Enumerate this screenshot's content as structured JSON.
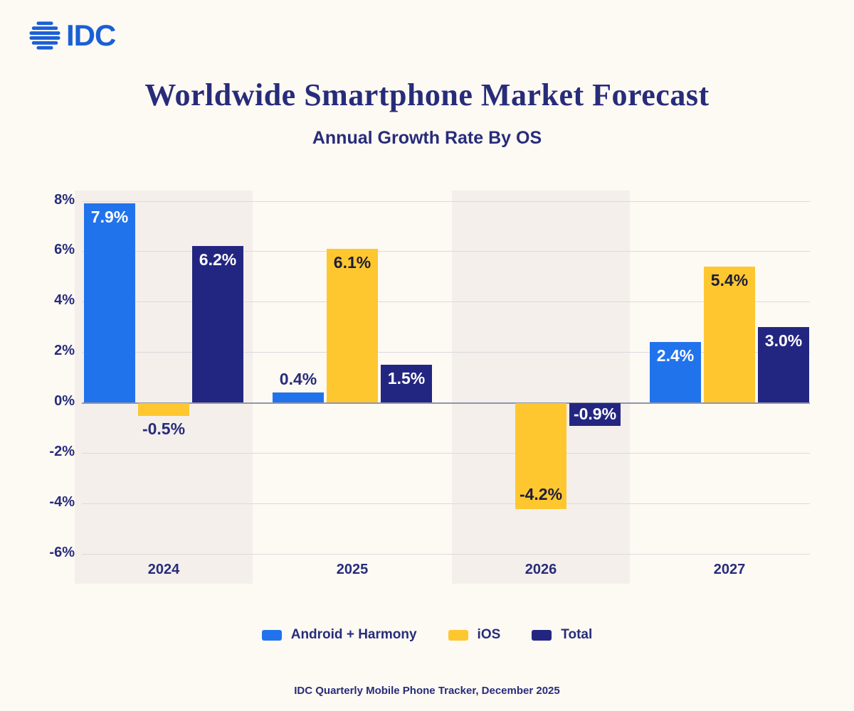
{
  "logo": {
    "text": "IDC",
    "icon": "idc-globe-icon"
  },
  "header": {
    "title": "Worldwide Smartphone Market Forecast",
    "subtitle": "Annual Growth Rate By OS"
  },
  "footer": {
    "source": "IDC Quarterly Mobile Phone Tracker, December 2025"
  },
  "colors": {
    "android": "#2173ec",
    "ios": "#fec72f",
    "total": "#232680",
    "accent_text": "#272c7a",
    "logo_blue": "#1a5fd6",
    "background": "#fdf9f3",
    "band": "#f4efeb",
    "gridline": "#dcd9df",
    "zero_line": "#9094ad",
    "label_light": "#ffffff",
    "label_dark": "#1d1d38"
  },
  "chart_data": {
    "type": "bar",
    "title": "Worldwide Smartphone Market Forecast",
    "subtitle": "Annual Growth Rate By OS",
    "categories": [
      "2024",
      "2025",
      "2026",
      "2027"
    ],
    "series": [
      {
        "name": "Android + Harmony",
        "color_key": "android",
        "values": [
          7.9,
          0.4,
          null,
          2.4
        ]
      },
      {
        "name": "iOS",
        "color_key": "ios",
        "values": [
          -0.5,
          6.1,
          -4.2,
          5.4
        ]
      },
      {
        "name": "Total",
        "color_key": "total",
        "values": [
          6.2,
          1.5,
          -0.9,
          3.0
        ]
      }
    ],
    "value_labels": [
      [
        "7.9%",
        "0.4%",
        null,
        "2.4%"
      ],
      [
        "-0.5%",
        "6.1%",
        "-4.2%",
        "5.4%"
      ],
      [
        "6.2%",
        "1.5%",
        "-0.9%",
        "3.0%"
      ]
    ],
    "label_layout": [
      [
        "inside-top",
        "above",
        null,
        "inside-top"
      ],
      [
        "below",
        "inside-top",
        "inside-bottom",
        "inside-top"
      ],
      [
        "inside-top",
        "inside-top",
        "inside-center",
        "inside-top"
      ]
    ],
    "label_tone": [
      [
        "light",
        "navy",
        null,
        "light"
      ],
      [
        "navy",
        "dark",
        "dark",
        "dark"
      ],
      [
        "light",
        "light",
        "light",
        "light"
      ]
    ],
    "y_ticks": [
      "8%",
      "6%",
      "4%",
      "2%",
      "0%",
      "-2%",
      "-4%",
      "-6%"
    ],
    "y_tick_values": [
      8,
      6,
      4,
      2,
      0,
      -2,
      -4,
      -6
    ],
    "ylim": [
      -7,
      8.4
    ],
    "unit": "%",
    "grid": true,
    "legend_position": "bottom",
    "banded_categories": [
      "2024",
      "2026"
    ],
    "source": "IDC Quarterly Mobile Phone Tracker, December 2025"
  }
}
